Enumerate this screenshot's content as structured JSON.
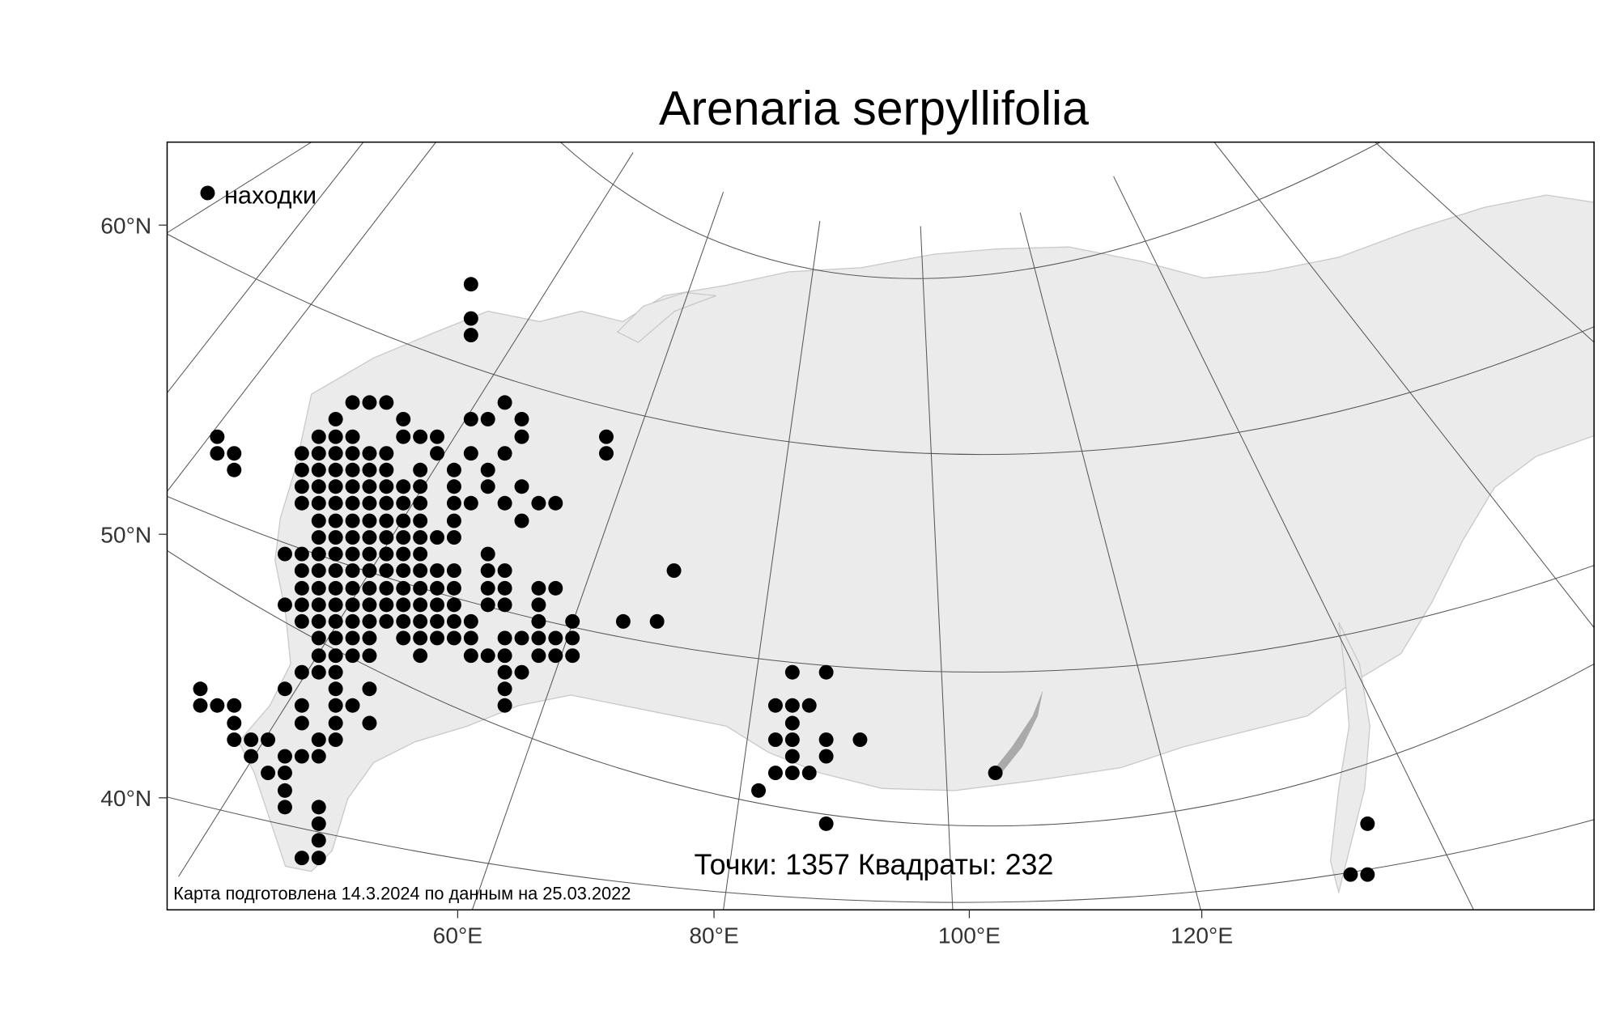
{
  "title": "Arenaria serpyllifolia",
  "legend": {
    "label": "находки"
  },
  "axes": {
    "lat_labels": [
      "60°N",
      "50°N",
      "40°N"
    ],
    "lon_labels": [
      "60°E",
      "80°E",
      "100°E",
      "120°E"
    ]
  },
  "stats": "Точки: 1357 Квадраты: 232",
  "footnote": "Карта подготовлена 14.3.2024 по данным на 25.03.2022"
}
